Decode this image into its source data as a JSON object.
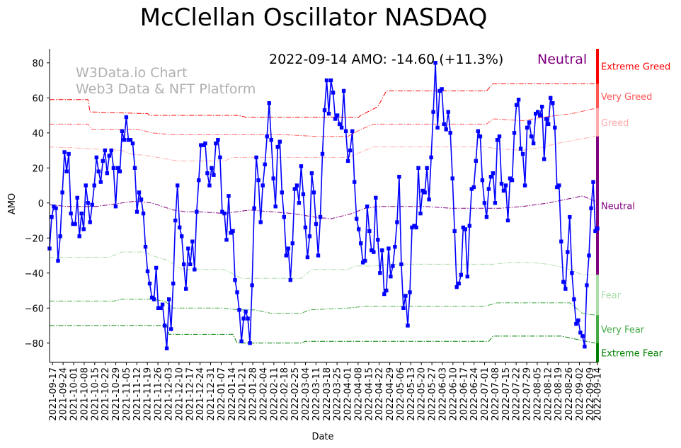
{
  "chart_data": {
    "type": "line",
    "title": "McClellan Oscillator NASDAQ",
    "xlabel": "Date",
    "ylabel": "AMO",
    "ylim": [
      -91,
      88
    ],
    "yticks": [
      80,
      60,
      40,
      20,
      0,
      -20,
      -40,
      -60,
      -80
    ],
    "status_text": "2022-09-14 AMO: -14.60 (+11.3%)",
    "status_label": "Neutral",
    "watermark_lines": [
      "W3Data.io Chart",
      "Web3 Data & NFT Platform"
    ],
    "x_start": "2021-09-15",
    "x_end": "2022-09-14",
    "xtick_labels": [
      "2021-09-17",
      "2021-09-24",
      "2021-10-01",
      "2021-10-08",
      "2021-10-15",
      "2021-10-22",
      "2021-10-29",
      "2021-11-05",
      "2021-11-12",
      "2021-11-19",
      "2021-11-26",
      "2021-12-03",
      "2021-12-10",
      "2021-12-17",
      "2021-12-24",
      "2021-12-31",
      "2022-01-07",
      "2022-01-14",
      "2022-01-21",
      "2022-01-28",
      "2022-02-04",
      "2022-02-11",
      "2022-02-18",
      "2022-02-25",
      "2022-03-04",
      "2022-03-11",
      "2022-03-18",
      "2022-03-25",
      "2022-04-01",
      "2022-04-08",
      "2022-04-15",
      "2022-04-22",
      "2022-04-29",
      "2022-05-06",
      "2022-05-13",
      "2022-05-20",
      "2022-05-27",
      "2022-06-03",
      "2022-06-10",
      "2022-06-17",
      "2022-06-24",
      "2022-07-01",
      "2022-07-08",
      "2022-07-15",
      "2022-07-22",
      "2022-07-29",
      "2022-08-05",
      "2022-08-12",
      "2022-08-19",
      "2022-08-26",
      "2022-09-02",
      "2022-09-09",
      "2022-09-14"
    ],
    "zones": [
      {
        "name": "Extreme Greed",
        "from": 68,
        "to": 88,
        "color": "#ff0000"
      },
      {
        "name": "Very Greed",
        "from": 54,
        "to": 68,
        "color": "#ff5555"
      },
      {
        "name": "Greed",
        "from": 38,
        "to": 54,
        "color": "#ffaaaa"
      },
      {
        "name": "Neutral",
        "from": -41,
        "to": 38,
        "color": "#800080"
      },
      {
        "name": "Fear",
        "from": -64,
        "to": -41,
        "color": "#aaddaa"
      },
      {
        "name": "Very Fear",
        "from": -80,
        "to": -64,
        "color": "#44aa44"
      },
      {
        "name": "Extreme Fear",
        "from": -91,
        "to": -80,
        "color": "#008000"
      }
    ],
    "threshold_lines": [
      {
        "name": "extreme-greed",
        "color": "#ff0000",
        "points": [
          [
            0,
            59
          ],
          [
            18,
            59
          ],
          [
            19,
            52
          ],
          [
            46,
            51
          ],
          [
            47,
            50
          ],
          [
            88,
            50
          ],
          [
            92,
            49
          ],
          [
            145,
            49
          ],
          [
            146,
            50
          ],
          [
            154,
            55
          ],
          [
            158,
            64
          ],
          [
            205,
            64
          ],
          [
            208,
            68
          ],
          [
            256,
            68
          ]
        ]
      },
      {
        "name": "very-greed",
        "color": "#ff5555",
        "points": [
          [
            0,
            45
          ],
          [
            18,
            45
          ],
          [
            20,
            42
          ],
          [
            42,
            42
          ],
          [
            48,
            40
          ],
          [
            58,
            39
          ],
          [
            110,
            39
          ],
          [
            125,
            38
          ],
          [
            140,
            38
          ],
          [
            146,
            42
          ],
          [
            152,
            45
          ],
          [
            205,
            45
          ],
          [
            208,
            48
          ],
          [
            222,
            47
          ],
          [
            232,
            49
          ],
          [
            238,
            50
          ],
          [
            245,
            51
          ],
          [
            256,
            54
          ]
        ]
      },
      {
        "name": "greed",
        "color": "#ffaaaa",
        "points": [
          [
            0,
            32
          ],
          [
            20,
            31
          ],
          [
            34,
            30
          ],
          [
            38,
            28
          ],
          [
            46,
            27
          ],
          [
            60,
            24
          ],
          [
            82,
            24
          ],
          [
            86,
            26
          ],
          [
            120,
            26
          ],
          [
            140,
            26
          ],
          [
            148,
            30
          ],
          [
            152,
            32
          ],
          [
            205,
            32
          ],
          [
            210,
            31
          ],
          [
            222,
            30
          ],
          [
            232,
            32
          ],
          [
            238,
            34
          ],
          [
            256,
            38
          ]
        ]
      },
      {
        "name": "neutral",
        "color": "#800080",
        "points": [
          [
            0,
            -1
          ],
          [
            8,
            -2
          ],
          [
            22,
            -2
          ],
          [
            34,
            0
          ],
          [
            40,
            1
          ],
          [
            48,
            0
          ],
          [
            58,
            -4
          ],
          [
            64,
            -5
          ],
          [
            70,
            -5
          ],
          [
            82,
            -6
          ],
          [
            94,
            -4
          ],
          [
            104,
            -5
          ],
          [
            114,
            -6
          ],
          [
            124,
            -8
          ],
          [
            132,
            -9
          ],
          [
            142,
            -6
          ],
          [
            148,
            -3
          ],
          [
            154,
            -2
          ],
          [
            176,
            -2
          ],
          [
            188,
            -3
          ],
          [
            204,
            -3
          ],
          [
            212,
            -3
          ],
          [
            222,
            -2
          ],
          [
            234,
            0
          ],
          [
            242,
            2
          ],
          [
            250,
            4
          ],
          [
            256,
            1
          ]
        ]
      },
      {
        "name": "fear",
        "color": "#aaddaa",
        "points": [
          [
            0,
            -31
          ],
          [
            20,
            -31
          ],
          [
            28,
            -31
          ],
          [
            34,
            -28
          ],
          [
            45,
            -28
          ],
          [
            48,
            -30
          ],
          [
            56,
            -33
          ],
          [
            62,
            -38
          ],
          [
            82,
            -38
          ],
          [
            90,
            -43
          ],
          [
            118,
            -43
          ],
          [
            123,
            -38
          ],
          [
            140,
            -38
          ],
          [
            143,
            -36
          ],
          [
            152,
            -36
          ],
          [
            160,
            -35
          ],
          [
            208,
            -35
          ],
          [
            216,
            -34
          ],
          [
            226,
            -34
          ],
          [
            234,
            -35
          ],
          [
            238,
            -36
          ],
          [
            244,
            -38
          ],
          [
            250,
            -41
          ],
          [
            256,
            -41
          ]
        ]
      },
      {
        "name": "very-fear",
        "color": "#44aa44",
        "points": [
          [
            0,
            -56
          ],
          [
            30,
            -56
          ],
          [
            34,
            -55
          ],
          [
            48,
            -55
          ],
          [
            54,
            -56
          ],
          [
            58,
            -60
          ],
          [
            82,
            -60
          ],
          [
            88,
            -61
          ],
          [
            96,
            -61
          ],
          [
            104,
            -63
          ],
          [
            118,
            -63
          ],
          [
            122,
            -61
          ],
          [
            140,
            -60
          ],
          [
            148,
            -59
          ],
          [
            160,
            -59
          ],
          [
            204,
            -59
          ],
          [
            210,
            -57
          ],
          [
            236,
            -57
          ],
          [
            244,
            -57
          ],
          [
            250,
            -63
          ],
          [
            256,
            -64
          ]
        ]
      },
      {
        "name": "extreme-fear",
        "color": "#008000",
        "points": [
          [
            0,
            -70
          ],
          [
            42,
            -70
          ],
          [
            55,
            -70
          ],
          [
            56,
            -75
          ],
          [
            86,
            -75
          ],
          [
            88,
            -80
          ],
          [
            118,
            -80
          ],
          [
            120,
            -79
          ],
          [
            206,
            -79
          ],
          [
            208,
            -76
          ],
          [
            240,
            -76
          ],
          [
            256,
            -80
          ]
        ]
      }
    ],
    "series": [
      {
        "name": "AMO",
        "color": "#0000ff",
        "values": [
          -26,
          -8,
          -2,
          -3,
          -33,
          -19,
          6,
          29,
          18,
          28,
          -6,
          -12,
          -12,
          3,
          -19,
          -6,
          -15,
          10,
          0,
          -11,
          -1,
          10,
          26,
          18,
          12,
          24,
          30,
          17,
          27,
          30,
          20,
          -2,
          20,
          18,
          41,
          36,
          49,
          36,
          36,
          34,
          20,
          -5,
          6,
          2,
          -6,
          -25,
          -39,
          -46,
          -54,
          -55,
          -37,
          -60,
          -60,
          -58,
          -70,
          -83,
          -55,
          -72,
          -46,
          -10,
          10,
          -14,
          -19,
          -35,
          -49,
          -26,
          -35,
          -22,
          -38,
          -5,
          13,
          33,
          33,
          34,
          17,
          10,
          20,
          16,
          34,
          36,
          26,
          -5,
          -6,
          -21,
          4,
          -17,
          -16,
          -44,
          -51,
          -61,
          -79,
          -66,
          -62,
          -66,
          -80,
          -47,
          -3,
          26,
          13,
          -11,
          10,
          22,
          38,
          57,
          36,
          14,
          -2,
          32,
          35,
          6,
          -8,
          -30,
          -26,
          -44,
          -23,
          8,
          10,
          0,
          21,
          5,
          -14,
          -31,
          -19,
          17,
          6,
          -12,
          -30,
          -8,
          28,
          53,
          70,
          51,
          70,
          63,
          48,
          50,
          45,
          43,
          64,
          41,
          24,
          30,
          41,
          12,
          -9,
          -15,
          -23,
          -34,
          -33,
          -2,
          -16,
          -27,
          -28,
          3,
          -21,
          -40,
          -27,
          -52,
          -50,
          -26,
          -42,
          -36,
          -25,
          -11,
          15,
          -35,
          -60,
          -53,
          -70,
          -51,
          -14,
          -13,
          -14,
          20,
          -6,
          7,
          6,
          20,
          2,
          26,
          52,
          80,
          43,
          64,
          65,
          45,
          42,
          52,
          40,
          14,
          -16,
          -48,
          -46,
          -41,
          -14,
          -15,
          -42,
          -13,
          8,
          9,
          24,
          41,
          38,
          13,
          0,
          -8,
          8,
          15,
          17,
          0,
          36,
          38,
          11,
          7,
          10,
          -10,
          14,
          13,
          40,
          56,
          59,
          31,
          28,
          10,
          43,
          46,
          38,
          34,
          51,
          52,
          50,
          55,
          25,
          48,
          45,
          60,
          57,
          43,
          9,
          10,
          -22,
          -45,
          -49,
          -28,
          -8,
          -40,
          -55,
          -69,
          -67,
          -74,
          -76,
          -82,
          -47,
          -30,
          -3,
          12,
          -16,
          -14.6
        ]
      }
    ]
  }
}
